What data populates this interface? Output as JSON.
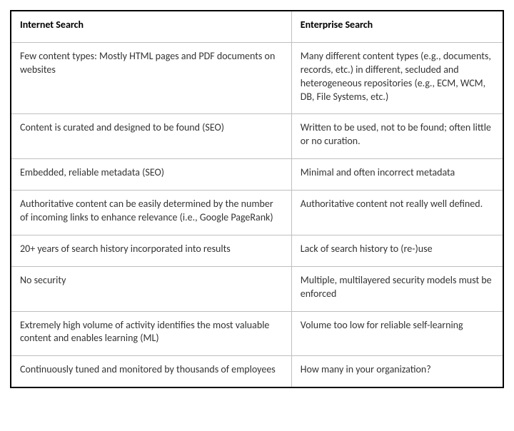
{
  "table": {
    "type": "table",
    "border_color": "#000000",
    "cell_border_color": "#bfbfbf",
    "background_color": "#ffffff",
    "text_color": "#333333",
    "header_text_color": "#000000",
    "font_family": "Segoe UI",
    "header_fontsize_pt": 11,
    "body_fontsize_pt": 10.5,
    "header_fontweight": "600",
    "column_widths_pct": [
      57,
      43
    ],
    "columns": [
      "Internet Search",
      "Enterprise Search"
    ],
    "rows": [
      [
        "Few content types: Mostly HTML pages and PDF documents on websites",
        "Many different content types (e.g., documents, records, etc.) in different, secluded and heterogeneous repositories (e.g., ECM, WCM, DB, File Systems, etc.)"
      ],
      [
        "Content is curated and designed to be found (SEO)",
        "Written to be used, not to be found; often little or no curation."
      ],
      [
        "Embedded, reliable metadata (SEO)",
        "Minimal and often incorrect metadata"
      ],
      [
        "Authoritative content can be easily determined by the number of incoming links to enhance relevance (i.e., Google PageRank)",
        "Authoritative content not really well defined."
      ],
      [
        "20+ years of search history incorporated into results",
        "Lack of search history to (re-)use"
      ],
      [
        "No security",
        "Multiple, multilayered security models must be enforced"
      ],
      [
        "Extremely high volume of activity identifies the most valuable content and enables learning (ML)",
        "Volume too low for reliable self-learning"
      ],
      [
        "Continuously tuned and monitored by thousands of employees",
        "How many in your organization?"
      ]
    ]
  }
}
